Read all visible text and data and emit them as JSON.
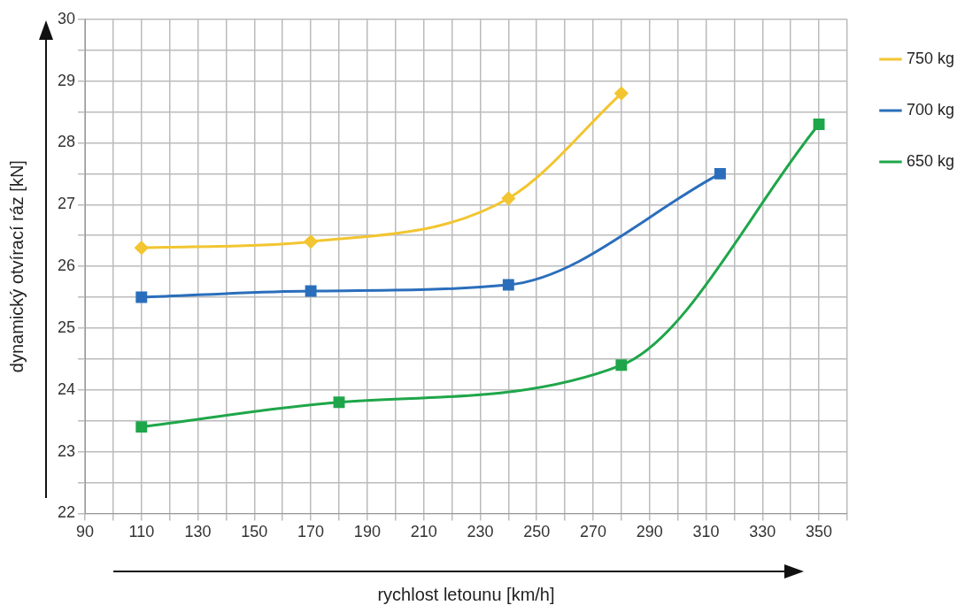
{
  "chart_data": {
    "type": "line",
    "xlabel": "rychlost letounu [km/h]",
    "ylabel": "dynamický otvírací ráz [kN]",
    "xlim": [
      90,
      360
    ],
    "ylim": [
      22,
      30
    ],
    "xticks": [
      90,
      {
        "value": 100,
        "label": null
      },
      110,
      {
        "value": 120,
        "label": null
      },
      130,
      {
        "value": 140,
        "label": null
      },
      150,
      {
        "value": 160,
        "label": null
      },
      170,
      {
        "value": 180,
        "label": null
      },
      190,
      {
        "value": 200,
        "label": null
      },
      210,
      {
        "value": 220,
        "label": null
      },
      230,
      {
        "value": 240,
        "label": null
      },
      250,
      {
        "value": 260,
        "label": null
      },
      270,
      {
        "value": 280,
        "label": null
      },
      290,
      {
        "value": 300,
        "label": null
      },
      310,
      {
        "value": 320,
        "label": null
      },
      330,
      {
        "value": 340,
        "label": null
      },
      350,
      {
        "value": 360,
        "label": null
      }
    ],
    "yticks": [
      22,
      {
        "value": 22.5,
        "label": null
      },
      23,
      {
        "value": 23.5,
        "label": null
      },
      24,
      {
        "value": 24.5,
        "label": null
      },
      25,
      {
        "value": 25.5,
        "label": null
      },
      26,
      {
        "value": 26.5,
        "label": null
      },
      27,
      {
        "value": 27.5,
        "label": null
      },
      28,
      {
        "value": 28.5,
        "label": null
      },
      29,
      {
        "value": 29.5,
        "label": null
      },
      30
    ],
    "grid": true,
    "legend": "right",
    "line_style": "solid",
    "series": [
      {
        "name": "750 kg",
        "color": "#f2c531",
        "x": [
          110,
          170,
          240,
          280
        ],
        "values": [
          26.3,
          26.4,
          27.1,
          28.8
        ],
        "marker": "diamond"
      },
      {
        "name": "700 kg",
        "color": "#2a6ebb",
        "x": [
          110,
          170,
          240,
          315
        ],
        "values": [
          25.5,
          25.6,
          25.7,
          27.5
        ],
        "marker": "square"
      },
      {
        "name": "650 kg",
        "color": "#1fa64a",
        "x": [
          110,
          180,
          280,
          350
        ],
        "values": [
          23.4,
          23.8,
          24.4,
          28.3
        ],
        "marker": "square"
      }
    ]
  }
}
